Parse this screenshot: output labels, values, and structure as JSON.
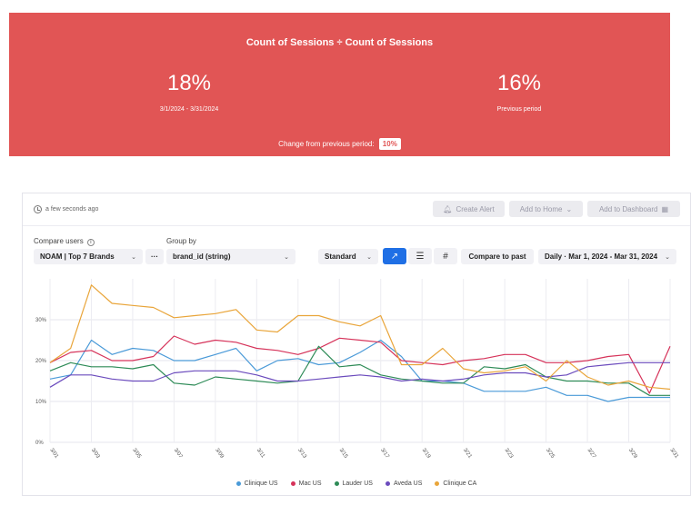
{
  "kpi": {
    "title": "Count of Sessions ÷ Count of Sessions",
    "current_value": "18%",
    "current_range": "3/1/2024 - 3/31/2024",
    "previous_value": "16%",
    "previous_label": "Previous period",
    "change_label": "Change from previous period:",
    "change_value": "10%",
    "bg_color": "#e15555"
  },
  "header": {
    "timestamp": "a few seconds ago",
    "create_alert": "Create Alert",
    "add_to_home": "Add to Home",
    "add_to_dashboard": "Add to Dashboard"
  },
  "controls": {
    "compare_users_label": "Compare users",
    "compare_users_value": "NOAM | Top 7 Brands",
    "group_by_label": "Group by",
    "group_by_value": "brand_id (string)",
    "standard": "Standard",
    "compare_to_past": "Compare to past",
    "date_range": "Daily · Mar 1, 2024 - Mar 31, 2024"
  },
  "chart_data": {
    "type": "line",
    "x": [
      "3/01",
      "3/02",
      "3/03",
      "3/04",
      "3/05",
      "3/06",
      "3/07",
      "3/08",
      "3/09",
      "3/10",
      "3/11",
      "3/12",
      "3/13",
      "3/14",
      "3/15",
      "3/16",
      "3/17",
      "3/18",
      "3/19",
      "3/20",
      "3/21",
      "3/22",
      "3/23",
      "3/24",
      "3/25",
      "3/26",
      "3/27",
      "3/28",
      "3/29",
      "3/30",
      "3/31"
    ],
    "xticks": [
      "3/01",
      "3/03",
      "3/05",
      "3/07",
      "3/09",
      "3/11",
      "3/13",
      "3/15",
      "3/17",
      "3/19",
      "3/21",
      "3/23",
      "3/25",
      "3/27",
      "3/29",
      "3/31"
    ],
    "yticks": [
      "0%",
      "10%",
      "20%",
      "30%"
    ],
    "ylim": [
      0,
      40
    ],
    "series": [
      {
        "name": "Clinique US",
        "color": "#4a9ad8",
        "values": [
          15.5,
          16.5,
          25,
          21.5,
          23,
          22.5,
          20,
          20,
          21.5,
          23,
          17.5,
          20,
          20.5,
          19,
          19.5,
          22,
          25,
          21,
          15,
          15,
          14.5,
          12.5,
          12.5,
          12.5,
          13.5,
          11.5,
          11.5,
          10,
          11,
          11,
          11
        ]
      },
      {
        "name": "Mac US",
        "color": "#d6335a",
        "values": [
          19.5,
          22,
          22.5,
          20,
          20,
          21,
          26,
          24,
          25,
          24.5,
          23,
          22.5,
          21.5,
          23,
          25.5,
          25,
          24.5,
          20,
          19.5,
          19,
          20,
          20.5,
          21.5,
          21.5,
          19.5,
          19.5,
          20,
          21,
          21.5,
          12,
          23.5
        ]
      },
      {
        "name": "Lauder US",
        "color": "#2e8b57",
        "values": [
          17.5,
          19.5,
          18.5,
          18.5,
          18,
          19,
          14.5,
          14,
          16,
          15.5,
          15,
          14.5,
          15,
          23.5,
          18.5,
          19,
          16.5,
          15.5,
          15,
          14.5,
          14.5,
          18.5,
          18,
          19,
          16,
          15,
          15,
          14.5,
          14.5,
          11.5,
          11.5
        ]
      },
      {
        "name": "Aveda US",
        "color": "#6b4bbd",
        "values": [
          13.5,
          16.5,
          16.5,
          15.5,
          15,
          15,
          17,
          17.5,
          17.5,
          17.5,
          16.5,
          15,
          15,
          15.5,
          16,
          16.5,
          16,
          15,
          15.5,
          15,
          15.5,
          16.5,
          17,
          17,
          16,
          16.5,
          18.5,
          19,
          19.5,
          19.5,
          19.5
        ]
      },
      {
        "name": "Clinique CA",
        "color": "#e9a53a",
        "values": [
          19.5,
          23,
          38.5,
          34,
          33.5,
          33,
          30.5,
          31,
          31.5,
          32.5,
          27.5,
          27,
          31,
          31,
          29.5,
          28.5,
          31,
          19,
          19,
          23,
          18,
          17,
          17.5,
          18.5,
          15,
          20,
          16,
          14,
          15,
          13.5,
          13
        ]
      }
    ]
  }
}
